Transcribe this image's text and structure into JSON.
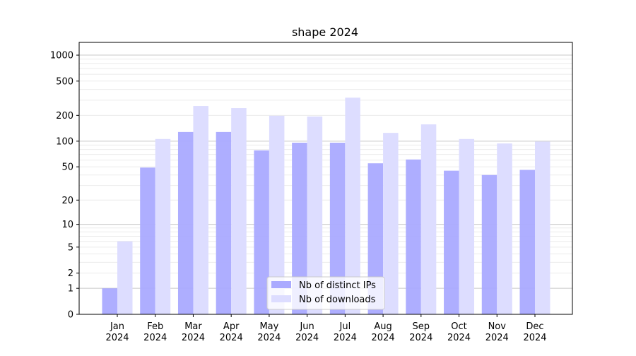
{
  "chart_data": {
    "type": "bar",
    "title": "shape 2024",
    "xlabel": "",
    "ylabel": "",
    "y_scale": "log(1+y)",
    "ylim": [
      0,
      1400
    ],
    "y_ticks": [
      0,
      1,
      2,
      5,
      10,
      20,
      50,
      100,
      200,
      500,
      1000
    ],
    "grid": true,
    "legend_position": "bottom-center",
    "categories": [
      "Jan\n2024",
      "Feb\n2024",
      "Mar\n2024",
      "Apr\n2024",
      "May\n2024",
      "Jun\n2024",
      "Jul\n2024",
      "Aug\n2024",
      "Sep\n2024",
      "Oct\n2024",
      "Nov\n2024",
      "Dec\n2024"
    ],
    "series": [
      {
        "name": "Nb of distinct IPs",
        "color": "#aaaaff",
        "values": [
          1,
          49,
          128,
          128,
          78,
          96,
          96,
          55,
          61,
          45,
          40,
          46
        ]
      },
      {
        "name": "Nb of downloads",
        "color": "#ddddff",
        "values": [
          6,
          106,
          257,
          243,
          198,
          194,
          321,
          125,
          157,
          106,
          94,
          99
        ]
      }
    ]
  }
}
